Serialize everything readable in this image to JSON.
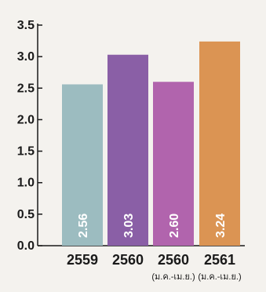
{
  "chart_data": {
    "type": "bar",
    "categories": [
      "2559",
      "2560",
      "2560",
      "2561"
    ],
    "category_sublabels": [
      "",
      "",
      "(ม.ค.-เม.ย.)",
      "(ม.ค.-เม.ย.)"
    ],
    "values": [
      2.56,
      3.03,
      2.6,
      3.24
    ],
    "value_labels": [
      "2.56",
      "3.03",
      "2.60",
      "3.24"
    ],
    "bar_colors": [
      "#9cbcc0",
      "#8a5fa6",
      "#b164ad",
      "#db9453"
    ],
    "ylim": [
      0,
      3.5
    ],
    "yticks": [
      "0.0",
      "0.5",
      "1.0",
      "1.5",
      "2.0",
      "2.5",
      "3.0",
      "3.5"
    ],
    "grid": false,
    "title": "",
    "xlabel": "",
    "ylabel": ""
  }
}
